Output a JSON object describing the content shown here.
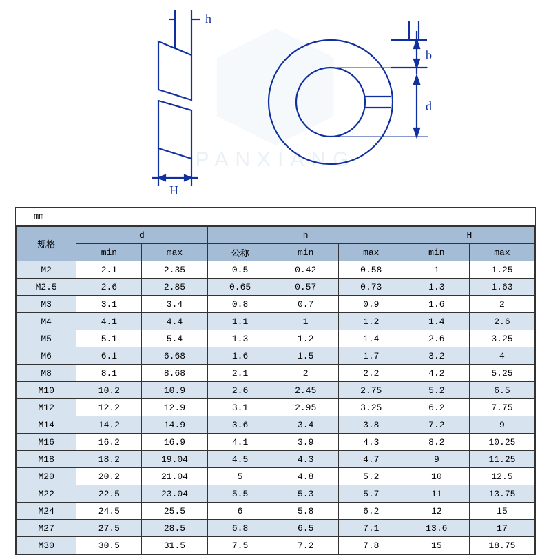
{
  "diagram": {
    "stroke": "#1030a0",
    "labels": {
      "h": "h",
      "H": "H",
      "b": "b",
      "d": "d"
    },
    "label_font_size": 18
  },
  "watermark": {
    "text": "PANXIANG",
    "logo_color": "#e3eef6"
  },
  "table": {
    "unit": "mm",
    "border_color": "#333333",
    "header_bg": "#a4bcd6",
    "alt_bg": "#d7e4f0",
    "font_size": 13,
    "columns": {
      "spec": "规格",
      "d": "d",
      "h": "h",
      "H": "H",
      "sub": {
        "d_min": "min",
        "d_max": "max",
        "h_nom": "公称",
        "h_min": "min",
        "h_max": "max",
        "H_min": "min",
        "H_max": "max"
      }
    },
    "rows": [
      {
        "spec": "M2",
        "d_min": "2.1",
        "d_max": "2.35",
        "h_nom": "0.5",
        "h_min": "0.42",
        "h_max": "0.58",
        "H_min": "1",
        "H_max": "1.25"
      },
      {
        "spec": "M2.5",
        "d_min": "2.6",
        "d_max": "2.85",
        "h_nom": "0.65",
        "h_min": "0.57",
        "h_max": "0.73",
        "H_min": "1.3",
        "H_max": "1.63"
      },
      {
        "spec": "M3",
        "d_min": "3.1",
        "d_max": "3.4",
        "h_nom": "0.8",
        "h_min": "0.7",
        "h_max": "0.9",
        "H_min": "1.6",
        "H_max": "2"
      },
      {
        "spec": "M4",
        "d_min": "4.1",
        "d_max": "4.4",
        "h_nom": "1.1",
        "h_min": "1",
        "h_max": "1.2",
        "H_min": "1.4",
        "H_max": "2.6"
      },
      {
        "spec": "M5",
        "d_min": "5.1",
        "d_max": "5.4",
        "h_nom": "1.3",
        "h_min": "1.2",
        "h_max": "1.4",
        "H_min": "2.6",
        "H_max": "3.25"
      },
      {
        "spec": "M6",
        "d_min": "6.1",
        "d_max": "6.68",
        "h_nom": "1.6",
        "h_min": "1.5",
        "h_max": "1.7",
        "H_min": "3.2",
        "H_max": "4"
      },
      {
        "spec": "M8",
        "d_min": "8.1",
        "d_max": "8.68",
        "h_nom": "2.1",
        "h_min": "2",
        "h_max": "2.2",
        "H_min": "4.2",
        "H_max": "5.25"
      },
      {
        "spec": "M10",
        "d_min": "10.2",
        "d_max": "10.9",
        "h_nom": "2.6",
        "h_min": "2.45",
        "h_max": "2.75",
        "H_min": "5.2",
        "H_max": "6.5"
      },
      {
        "spec": "M12",
        "d_min": "12.2",
        "d_max": "12.9",
        "h_nom": "3.1",
        "h_min": "2.95",
        "h_max": "3.25",
        "H_min": "6.2",
        "H_max": "7.75"
      },
      {
        "spec": "M14",
        "d_min": "14.2",
        "d_max": "14.9",
        "h_nom": "3.6",
        "h_min": "3.4",
        "h_max": "3.8",
        "H_min": "7.2",
        "H_max": "9"
      },
      {
        "spec": "M16",
        "d_min": "16.2",
        "d_max": "16.9",
        "h_nom": "4.1",
        "h_min": "3.9",
        "h_max": "4.3",
        "H_min": "8.2",
        "H_max": "10.25"
      },
      {
        "spec": "M18",
        "d_min": "18.2",
        "d_max": "19.04",
        "h_nom": "4.5",
        "h_min": "4.3",
        "h_max": "4.7",
        "H_min": "9",
        "H_max": "11.25"
      },
      {
        "spec": "M20",
        "d_min": "20.2",
        "d_max": "21.04",
        "h_nom": "5",
        "h_min": "4.8",
        "h_max": "5.2",
        "H_min": "10",
        "H_max": "12.5"
      },
      {
        "spec": "M22",
        "d_min": "22.5",
        "d_max": "23.04",
        "h_nom": "5.5",
        "h_min": "5.3",
        "h_max": "5.7",
        "H_min": "11",
        "H_max": "13.75"
      },
      {
        "spec": "M24",
        "d_min": "24.5",
        "d_max": "25.5",
        "h_nom": "6",
        "h_min": "5.8",
        "h_max": "6.2",
        "H_min": "12",
        "H_max": "15"
      },
      {
        "spec": "M27",
        "d_min": "27.5",
        "d_max": "28.5",
        "h_nom": "6.8",
        "h_min": "6.5",
        "h_max": "7.1",
        "H_min": "13.6",
        "H_max": "17"
      },
      {
        "spec": "M30",
        "d_min": "30.5",
        "d_max": "31.5",
        "h_nom": "7.5",
        "h_min": "7.2",
        "h_max": "7.8",
        "H_min": "15",
        "H_max": "18.75"
      }
    ]
  }
}
